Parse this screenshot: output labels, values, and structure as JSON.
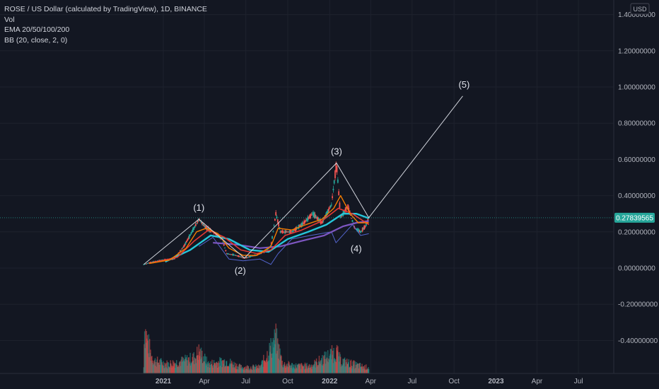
{
  "legend": {
    "title": "ROSE / US Dollar (calculated by TradingView), 1D, BINANCE",
    "vol": "Vol",
    "ema": "EMA 20/50/100/200",
    "bb": "BB (20, close, 2, 0)"
  },
  "currency": "USD",
  "colors": {
    "background": "#131722",
    "grid": "#1e222d",
    "up": "#26a69a",
    "down": "#ef5350",
    "ema20": "#f57c00",
    "ema50": "#e53935",
    "ema100": "#26c6da",
    "ema200": "#7e57c2",
    "bb": "#5b6ee1",
    "price_badge": "#26a69a"
  },
  "chart_data": {
    "type": "line",
    "price_badge": "0.27839565",
    "y_ticks": [
      {
        "value": 1.4,
        "label": "1.40000000"
      },
      {
        "value": 1.2,
        "label": "1.20000000"
      },
      {
        "value": 1.0,
        "label": "1.00000000"
      },
      {
        "value": 0.8,
        "label": "0.80000000"
      },
      {
        "value": 0.6,
        "label": "0.60000000"
      },
      {
        "value": 0.4,
        "label": "0.40000000"
      },
      {
        "value": 0.2,
        "label": "0.20000000"
      },
      {
        "value": 0.0,
        "label": "0.00000000"
      },
      {
        "value": -0.2,
        "label": "-0.20000000"
      },
      {
        "value": -0.4,
        "label": "-0.40000000"
      }
    ],
    "x_ticks": [
      {
        "date": "2021-01-01",
        "label": "2021",
        "bold": true
      },
      {
        "date": "2021-04-01",
        "label": "Apr",
        "bold": false
      },
      {
        "date": "2021-07-01",
        "label": "Jul",
        "bold": false
      },
      {
        "date": "2021-10-01",
        "label": "Oct",
        "bold": false
      },
      {
        "date": "2022-01-01",
        "label": "2022",
        "bold": true
      },
      {
        "date": "2022-04-01",
        "label": "Apr",
        "bold": false
      },
      {
        "date": "2022-07-01",
        "label": "Jul",
        "bold": false
      },
      {
        "date": "2022-10-01",
        "label": "Oct",
        "bold": false
      },
      {
        "date": "2023-01-01",
        "label": "2023",
        "bold": true
      },
      {
        "date": "2023-04-01",
        "label": "Apr",
        "bold": false
      },
      {
        "date": "2023-07-01",
        "label": "Jul",
        "bold": false
      }
    ],
    "price": [
      [
        "2020-11-19",
        0.02
      ],
      [
        "2020-12-10",
        0.035
      ],
      [
        "2021-01-01",
        0.045
      ],
      [
        "2021-01-25",
        0.05
      ],
      [
        "2021-02-15",
        0.12
      ],
      [
        "2021-03-05",
        0.2
      ],
      [
        "2021-03-20",
        0.27
      ],
      [
        "2021-04-05",
        0.22
      ],
      [
        "2021-04-20",
        0.2
      ],
      [
        "2021-05-10",
        0.16
      ],
      [
        "2021-05-20",
        0.08
      ],
      [
        "2021-06-10",
        0.07
      ],
      [
        "2021-06-28",
        0.055
      ],
      [
        "2021-07-20",
        0.07
      ],
      [
        "2021-08-10",
        0.09
      ],
      [
        "2021-08-25",
        0.12
      ],
      [
        "2021-09-05",
        0.3
      ],
      [
        "2021-09-15",
        0.2
      ],
      [
        "2021-10-10",
        0.2
      ],
      [
        "2021-11-01",
        0.24
      ],
      [
        "2021-11-25",
        0.3
      ],
      [
        "2021-12-15",
        0.25
      ],
      [
        "2022-01-05",
        0.35
      ],
      [
        "2022-01-16",
        0.58
      ],
      [
        "2022-01-25",
        0.28
      ],
      [
        "2022-02-10",
        0.34
      ],
      [
        "2022-02-25",
        0.22
      ],
      [
        "2022-03-10",
        0.2
      ],
      [
        "2022-03-20",
        0.23
      ],
      [
        "2022-03-28",
        0.278
      ]
    ],
    "ema20": [
      [
        "2020-12-01",
        0.025
      ],
      [
        "2021-01-15",
        0.045
      ],
      [
        "2021-02-20",
        0.11
      ],
      [
        "2021-03-15",
        0.2
      ],
      [
        "2021-04-05",
        0.22
      ],
      [
        "2021-05-01",
        0.19
      ],
      [
        "2021-05-25",
        0.11
      ],
      [
        "2021-06-25",
        0.07
      ],
      [
        "2021-07-25",
        0.07
      ],
      [
        "2021-08-25",
        0.12
      ],
      [
        "2021-09-10",
        0.22
      ],
      [
        "2021-10-10",
        0.21
      ],
      [
        "2021-11-10",
        0.24
      ],
      [
        "2021-12-15",
        0.27
      ],
      [
        "2022-01-10",
        0.33
      ],
      [
        "2022-01-25",
        0.4
      ],
      [
        "2022-02-15",
        0.3
      ],
      [
        "2022-03-05",
        0.25
      ],
      [
        "2022-03-28",
        0.25
      ]
    ],
    "ema50": [
      [
        "2020-12-10",
        0.03
      ],
      [
        "2021-02-01",
        0.06
      ],
      [
        "2021-03-10",
        0.15
      ],
      [
        "2021-04-10",
        0.21
      ],
      [
        "2021-05-15",
        0.17
      ],
      [
        "2021-06-20",
        0.1
      ],
      [
        "2021-07-25",
        0.08
      ],
      [
        "2021-08-25",
        0.1
      ],
      [
        "2021-09-25",
        0.18
      ],
      [
        "2021-11-01",
        0.21
      ],
      [
        "2021-12-15",
        0.26
      ],
      [
        "2022-01-20",
        0.33
      ],
      [
        "2022-02-20",
        0.3
      ],
      [
        "2022-03-28",
        0.24
      ]
    ],
    "ema100": [
      [
        "2021-01-05",
        0.035
      ],
      [
        "2021-03-01",
        0.1
      ],
      [
        "2021-04-15",
        0.18
      ],
      [
        "2021-05-25",
        0.16
      ],
      [
        "2021-07-10",
        0.1
      ],
      [
        "2021-08-20",
        0.09
      ],
      [
        "2021-10-01",
        0.16
      ],
      [
        "2021-11-15",
        0.2
      ],
      [
        "2021-12-25",
        0.24
      ],
      [
        "2022-01-30",
        0.3
      ],
      [
        "2022-03-01",
        0.3
      ],
      [
        "2022-03-28",
        0.275
      ]
    ],
    "ema200": [
      [
        "2021-04-20",
        0.14
      ],
      [
        "2021-06-10",
        0.13
      ],
      [
        "2021-08-01",
        0.11
      ],
      [
        "2021-09-15",
        0.12
      ],
      [
        "2021-11-01",
        0.15
      ],
      [
        "2021-12-20",
        0.18
      ],
      [
        "2022-01-30",
        0.23
      ],
      [
        "2022-03-01",
        0.25
      ],
      [
        "2022-03-28",
        0.26
      ]
    ],
    "bb_lower": [
      [
        "2021-03-20",
        0.12
      ],
      [
        "2021-04-20",
        0.17
      ],
      [
        "2021-05-25",
        0.05
      ],
      [
        "2021-06-25",
        0.04
      ],
      [
        "2021-08-01",
        0.05
      ],
      [
        "2021-08-25",
        0.02
      ],
      [
        "2021-09-10",
        0.08
      ],
      [
        "2021-10-10",
        0.16
      ],
      [
        "2021-11-20",
        0.18
      ],
      [
        "2022-01-05",
        0.2
      ],
      [
        "2022-01-15",
        0.14
      ],
      [
        "2022-02-20",
        0.24
      ],
      [
        "2022-03-10",
        0.18
      ],
      [
        "2022-03-28",
        0.19
      ]
    ],
    "waves": [
      {
        "label": "(1)",
        "date": "2021-03-20",
        "value": 0.27
      },
      {
        "label": "(2)",
        "date": "2021-06-28",
        "value": 0.055
      },
      {
        "label": "(3)",
        "date": "2022-01-16",
        "value": 0.58
      },
      {
        "label": "(4)",
        "date": "2022-03-28",
        "value": 0.278
      },
      {
        "label": "(5)",
        "date": "2022-10-20",
        "value": 0.95
      }
    ],
    "wave_start": {
      "date": "2020-11-19",
      "value": 0.02
    },
    "volume": [
      [
        "2020-11-20",
        0.75
      ],
      [
        "2020-11-28",
        0.5
      ],
      [
        "2020-12-05",
        0.3
      ],
      [
        "2020-12-12",
        0.2
      ],
      [
        "2021-01-10",
        0.15
      ],
      [
        "2021-02-15",
        0.2
      ],
      [
        "2021-03-10",
        0.25
      ],
      [
        "2021-03-20",
        0.35
      ],
      [
        "2021-04-10",
        0.15
      ],
      [
        "2021-05-19",
        0.2
      ],
      [
        "2021-06-20",
        0.1
      ],
      [
        "2021-08-01",
        0.1
      ],
      [
        "2021-09-05",
        0.55
      ],
      [
        "2021-09-20",
        0.15
      ],
      [
        "2021-10-20",
        0.12
      ],
      [
        "2021-11-20",
        0.12
      ],
      [
        "2022-01-16",
        0.35
      ],
      [
        "2022-01-25",
        0.2
      ],
      [
        "2022-02-20",
        0.15
      ],
      [
        "2022-03-20",
        0.1
      ]
    ]
  }
}
